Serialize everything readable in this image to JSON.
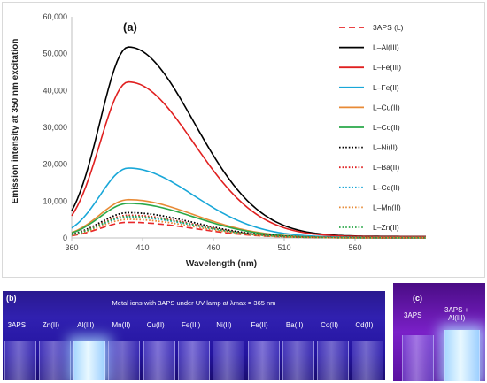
{
  "chart_data": {
    "type": "line",
    "panel_label": "(a)",
    "xlabel": "Wavelength (nm)",
    "ylabel": "Emission intensity at 350 nm excitation",
    "xlim": [
      360,
      610
    ],
    "ylim": [
      0,
      60000
    ],
    "x_ticks": [
      360,
      410,
      460,
      510,
      560
    ],
    "y_ticks": [
      0,
      10000,
      20000,
      30000,
      40000,
      50000,
      60000
    ],
    "x_tick_labels": [
      "360",
      "410",
      "460",
      "510",
      "560"
    ],
    "y_tick_labels": [
      "0",
      "10,000",
      "20,000",
      "30,000",
      "40,000",
      "50,000",
      "60,000"
    ],
    "grid": false,
    "legend_position": "right",
    "peak_wavelength": 400,
    "series": [
      {
        "name": "3APS (L)",
        "peak": 4200,
        "color": "#e8282a",
        "style": "dashed"
      },
      {
        "name": "L–Al(III)",
        "peak": 51400,
        "color": "#000000",
        "style": "solid"
      },
      {
        "name": "L–Fe(III)",
        "peak": 42000,
        "color": "#e02020",
        "style": "solid"
      },
      {
        "name": "L–Fe(II)",
        "peak": 18800,
        "color": "#19a7d8",
        "style": "solid"
      },
      {
        "name": "L–Cu(II)",
        "peak": 10300,
        "color": "#e88a36",
        "style": "solid"
      },
      {
        "name": "L–Co(II)",
        "peak": 9300,
        "color": "#2aa84a",
        "style": "solid"
      },
      {
        "name": "L–Ni(II)",
        "peak": 6800,
        "color": "#000000",
        "style": "dotted"
      },
      {
        "name": "L–Ba(II)",
        "peak": 6100,
        "color": "#e02020",
        "style": "dotted"
      },
      {
        "name": "L–Cd(II)",
        "peak": 5600,
        "color": "#19a7d8",
        "style": "dotted"
      },
      {
        "name": "L–Mn(II)",
        "peak": 5000,
        "color": "#e88a36",
        "style": "dotted"
      },
      {
        "name": "L–Zn(II)",
        "peak": 5800,
        "color": "#2aa84a",
        "style": "dotted"
      }
    ]
  },
  "photo_b": {
    "tag": "(b)",
    "caption": "Metal ions with 3APS under UV lamp at λmax = 365 nm",
    "vials": [
      {
        "label": "3APS",
        "bright": 0
      },
      {
        "label": "Zn(II)",
        "bright": 0
      },
      {
        "label": "Al(III)",
        "bright": 1
      },
      {
        "label": "Mn(II)",
        "bright": 0
      },
      {
        "label": "Cu(II)",
        "bright": 0.5
      },
      {
        "label": "Fe(III)",
        "bright": 0.5
      },
      {
        "label": "Ni(II)",
        "bright": 0
      },
      {
        "label": "Fe(II)",
        "bright": 0.5
      },
      {
        "label": "Ba(II)",
        "bright": 0
      },
      {
        "label": "Co(II)",
        "bright": 0
      },
      {
        "label": "Cd(II)",
        "bright": 0
      }
    ]
  },
  "photo_c": {
    "tag": "(c)",
    "vial_1_label": "3APS",
    "vial_2_label": "3APS +\nAl(III)"
  }
}
